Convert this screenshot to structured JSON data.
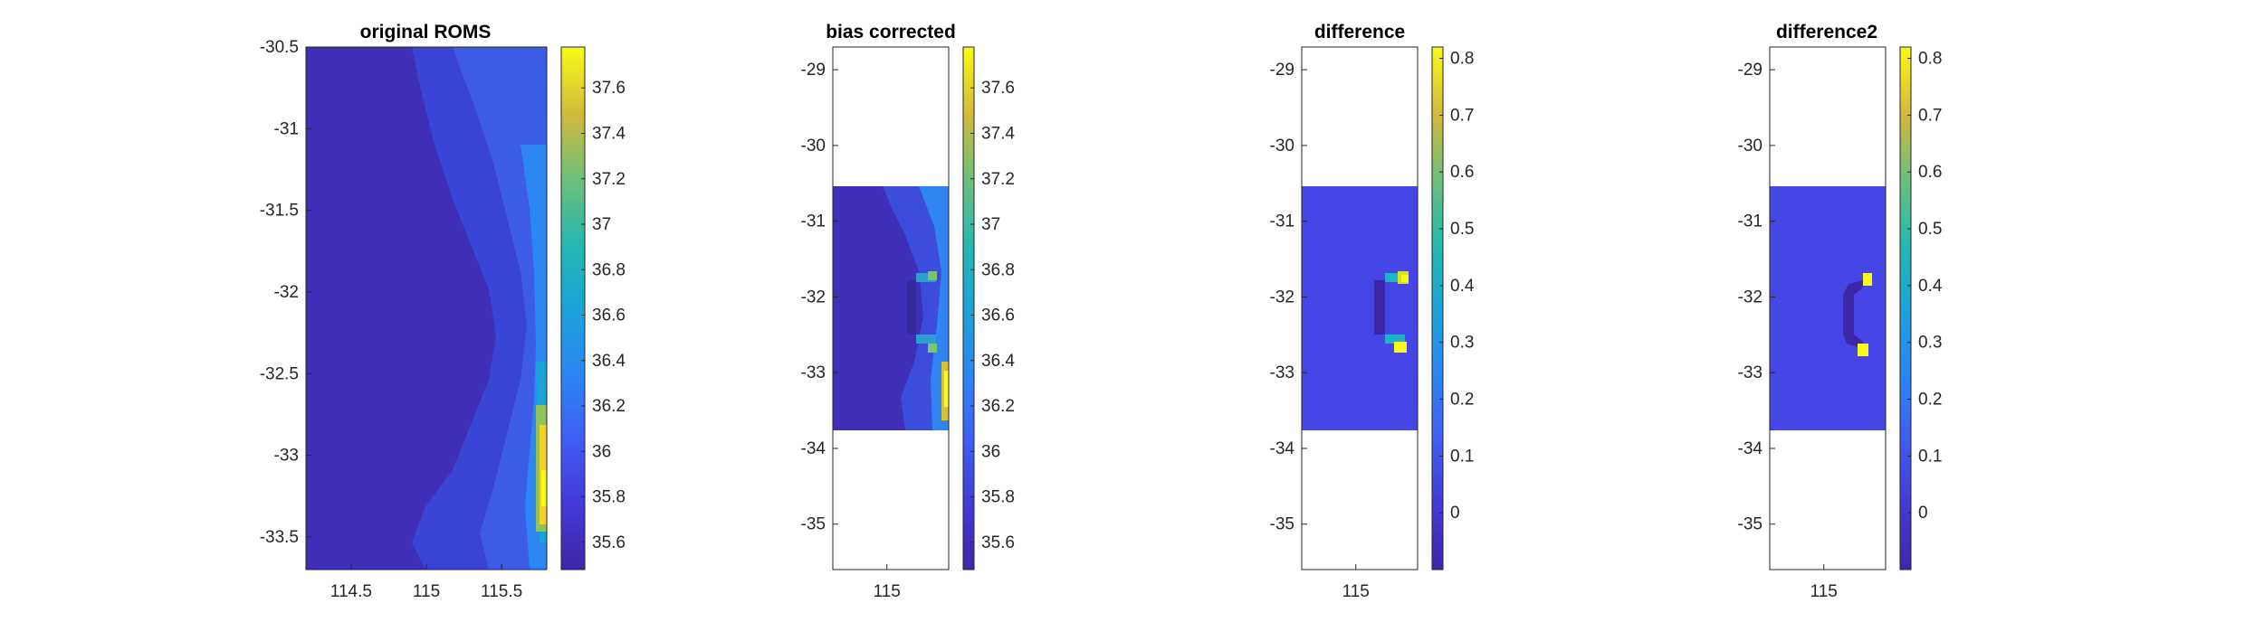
{
  "chart_data": [
    {
      "type": "heatmap",
      "title": "original ROMS",
      "xlabel": "",
      "ylabel": "",
      "xlim": [
        114.2,
        115.8
      ],
      "ylim": [
        -33.7,
        -30.5
      ],
      "xticks": [
        114.5,
        115,
        115.5
      ],
      "xtick_labels": [
        "114.5",
        "115",
        "115.5"
      ],
      "yticks": [
        -30.5,
        -31,
        -31.5,
        -32,
        -32.5,
        -33,
        -33.5
      ],
      "ytick_labels": [
        "-30.5",
        "-31",
        "-31.5",
        "-32",
        "-32.5",
        "-33",
        "-33.5"
      ],
      "data_extent": {
        "lon": [
          114.2,
          115.8
        ],
        "lat": [
          -33.7,
          -30.5
        ]
      },
      "colorbar": {
        "limits": [
          35.48,
          37.78
        ],
        "ticks": [
          35.6,
          35.8,
          36,
          36.2,
          36.4,
          36.6,
          36.8,
          37,
          37.2,
          37.4,
          37.6
        ],
        "tick_labels": [
          "35.6",
          "35.8",
          "36",
          "36.2",
          "36.4",
          "36.6",
          "36.8",
          "37",
          "37.2",
          "37.4",
          "37.6"
        ]
      },
      "field": "salinity-like field increasing toward the southeast coast, highest values near 115.8E, -33.0 to -33.5",
      "colormap": "parula"
    },
    {
      "type": "heatmap",
      "title": "bias corrected",
      "xlabel": "",
      "ylabel": "",
      "xlim": [
        114.65,
        115.4
      ],
      "ylim": [
        -35.6,
        -28.7
      ],
      "xticks": [
        115
      ],
      "xtick_labels": [
        "115"
      ],
      "yticks": [
        -29,
        -30,
        -31,
        -32,
        -33,
        -34,
        -35
      ],
      "ytick_labels": [
        "-29",
        "-30",
        "-31",
        "-32",
        "-33",
        "-34",
        "-35"
      ],
      "data_extent": {
        "lon": [
          114.65,
          115.4
        ],
        "lat": [
          -33.7,
          -30.5
        ]
      },
      "colorbar": {
        "limits": [
          35.48,
          37.78
        ],
        "ticks": [
          35.6,
          35.8,
          36,
          36.2,
          36.4,
          36.6,
          36.8,
          37,
          37.2,
          37.4,
          37.6
        ],
        "tick_labels": [
          "35.6",
          "35.8",
          "36",
          "36.2",
          "36.4",
          "36.6",
          "36.8",
          "37",
          "37.2",
          "37.4",
          "37.6"
        ]
      },
      "colormap": "parula"
    },
    {
      "type": "heatmap",
      "title": "difference",
      "xlabel": "",
      "ylabel": "",
      "xlim": [
        114.65,
        115.4
      ],
      "ylim": [
        -35.6,
        -28.7
      ],
      "xticks": [
        115
      ],
      "xtick_labels": [
        "115"
      ],
      "yticks": [
        -29,
        -30,
        -31,
        -32,
        -33,
        -34,
        -35
      ],
      "ytick_labels": [
        "-29",
        "-30",
        "-31",
        "-32",
        "-33",
        "-34",
        "-35"
      ],
      "data_extent": {
        "lon": [
          114.65,
          115.4
        ],
        "lat": [
          -33.7,
          -30.5
        ]
      },
      "background_value": 0,
      "colorbar": {
        "limits": [
          -0.1,
          0.82
        ],
        "ticks": [
          0,
          0.1,
          0.2,
          0.3,
          0.4,
          0.5,
          0.6,
          0.7,
          0.8
        ],
        "tick_labels": [
          "0",
          "0.1",
          "0.2",
          "0.3",
          "0.4",
          "0.5",
          "0.6",
          "0.7",
          "0.8"
        ]
      },
      "colormap": "parula"
    },
    {
      "type": "heatmap",
      "title": "difference2",
      "xlabel": "",
      "ylabel": "",
      "xlim": [
        114.65,
        115.4
      ],
      "ylim": [
        -35.6,
        -28.7
      ],
      "xticks": [
        115
      ],
      "xtick_labels": [
        "115"
      ],
      "yticks": [
        -29,
        -30,
        -31,
        -32,
        -33,
        -34,
        -35
      ],
      "ytick_labels": [
        "-29",
        "-30",
        "-31",
        "-32",
        "-33",
        "-34",
        "-35"
      ],
      "data_extent": {
        "lon": [
          114.65,
          115.4
        ],
        "lat": [
          -33.7,
          -30.5
        ]
      },
      "background_value": 0,
      "colorbar": {
        "limits": [
          -0.1,
          0.82
        ],
        "ticks": [
          0,
          0.1,
          0.2,
          0.3,
          0.4,
          0.5,
          0.6,
          0.7,
          0.8
        ],
        "tick_labels": [
          "0",
          "0.1",
          "0.2",
          "0.3",
          "0.4",
          "0.5",
          "0.6",
          "0.7",
          "0.8"
        ]
      },
      "colormap": "parula"
    }
  ],
  "colors": {
    "parula_low": "#3e26a8",
    "parula_mid_low": "#3f51e6",
    "parula_mid": "#1fb3c9",
    "parula_mid_high": "#a8bd3a",
    "parula_high": "#f9fb15",
    "axis": "#262626"
  }
}
